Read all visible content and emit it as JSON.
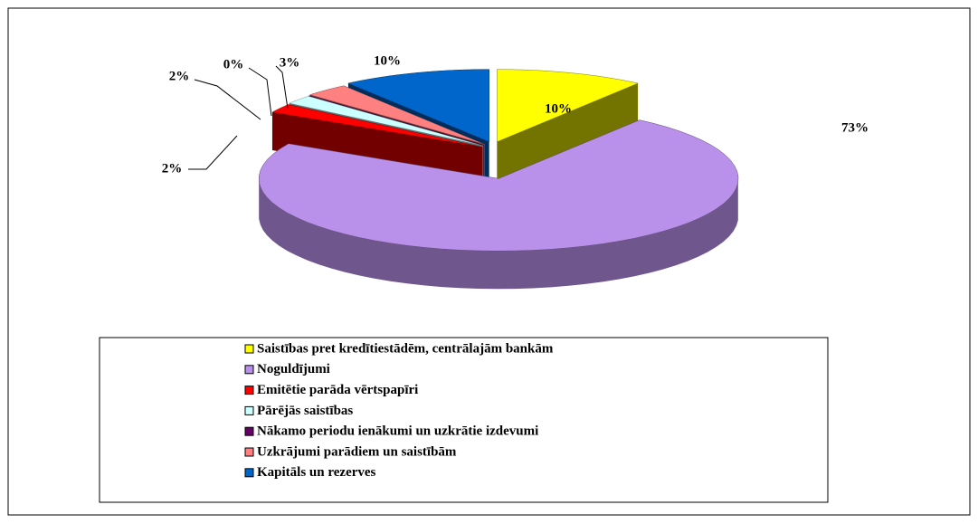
{
  "chart_data": {
    "type": "pie3d",
    "categories": [
      "Saistības pret kredītiestādēm, centrālajām bankām",
      "Noguldījumi",
      "Emitētie parāda vērtspapīri",
      "Pārējās saistības",
      "Nākamo periodu ienākumi un uzkrātie izdevumi",
      "Uzkrājumi parādiem un saistībām",
      "Kapitāls un rezerves"
    ],
    "values": [
      10,
      73,
      2,
      2,
      0,
      3,
      10
    ],
    "value_labels": [
      "10%",
      "73%",
      "2%",
      "2%",
      "0%",
      "3%",
      "10%"
    ],
    "colors": [
      "#ffff00",
      "#b990ea",
      "#ff0000",
      "#ccffff",
      "#660066",
      "#ff8080",
      "#0066cc"
    ],
    "legend": "bottom"
  }
}
